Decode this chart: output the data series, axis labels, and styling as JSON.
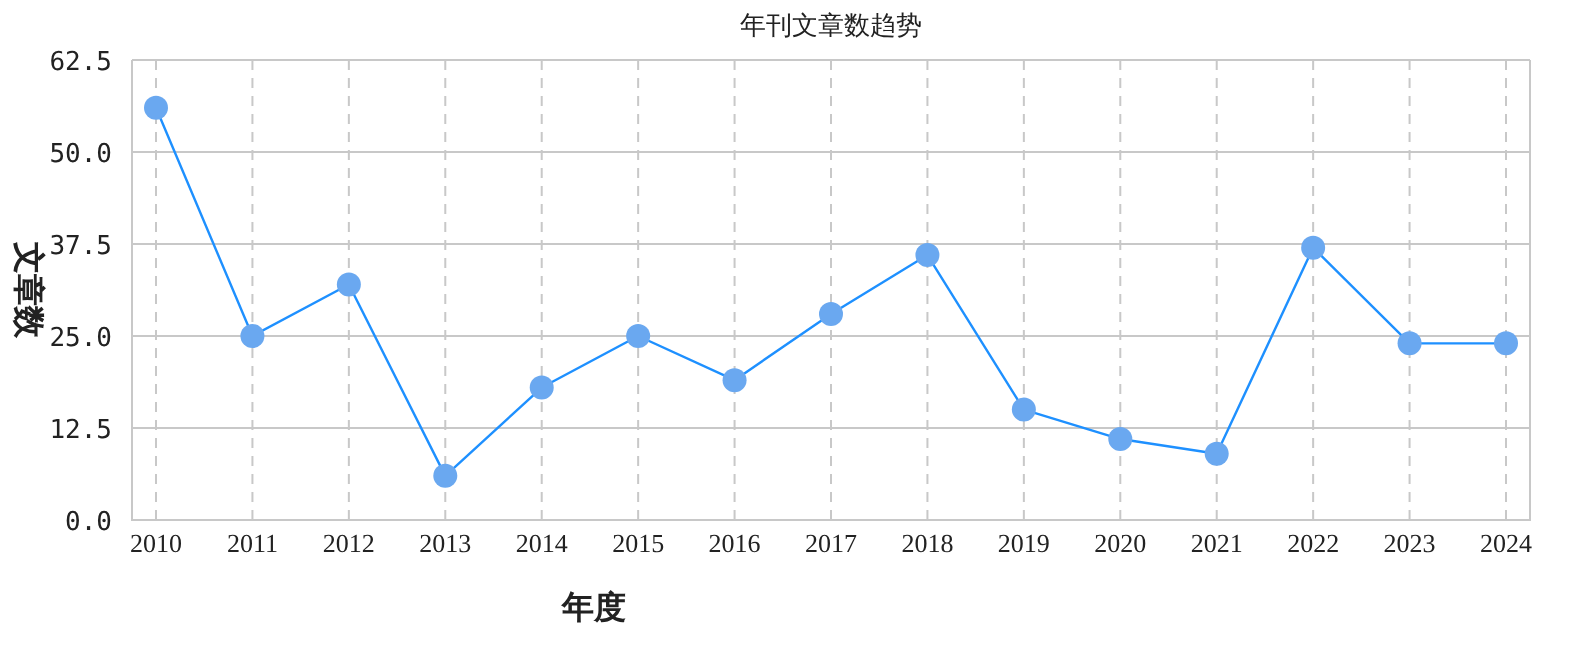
{
  "chart_data": {
    "type": "line",
    "title": "年刊文章数趋势",
    "xlabel": "年度",
    "ylabel": "文章数",
    "categories": [
      "2010",
      "2011",
      "2012",
      "2013",
      "2014",
      "2015",
      "2016",
      "2017",
      "2018",
      "2019",
      "2020",
      "2021",
      "2022",
      "2023",
      "2024"
    ],
    "series": [
      {
        "color": "#1e90ff",
        "values": [
          56,
          25,
          32,
          6,
          18,
          25,
          19,
          28,
          36,
          15,
          11,
          9,
          37,
          24,
          24
        ]
      }
    ],
    "ylim": [
      0,
      62.5
    ],
    "yticks": [
      {
        "value": 0,
        "label": "0.0"
      },
      {
        "value": 12.5,
        "label": "12.5"
      },
      {
        "value": 25,
        "label": "25.0"
      },
      {
        "value": 37.5,
        "label": "37.5"
      },
      {
        "value": 50,
        "label": "50.0"
      },
      {
        "value": 62.5,
        "label": "62.5"
      }
    ],
    "grid": true,
    "marker": "circle",
    "line_style": "solid"
  }
}
